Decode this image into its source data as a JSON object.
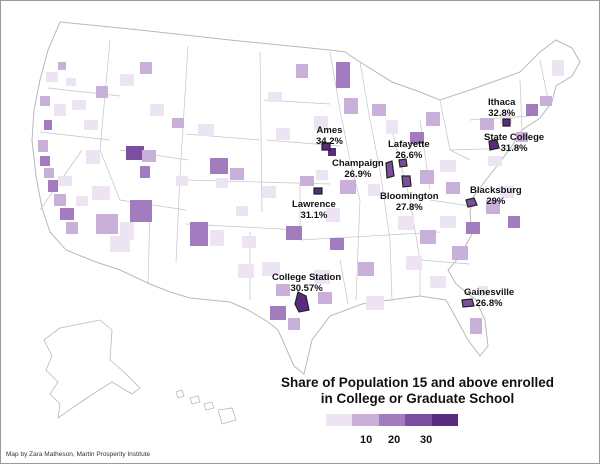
{
  "cities": [
    {
      "id": "ithaca",
      "name": "Ithaca",
      "value": "32.8%"
    },
    {
      "id": "ames",
      "name": "Ames",
      "value": "34.2%"
    },
    {
      "id": "lafayette",
      "name": "Lafayette",
      "value": "26.6%"
    },
    {
      "id": "state-college",
      "name": "State College",
      "value": "31.8%"
    },
    {
      "id": "champaign",
      "name": "Champaign",
      "value": "26.9%"
    },
    {
      "id": "bloomington",
      "name": "Bloomington",
      "value": "27.8%"
    },
    {
      "id": "lawrence",
      "name": "Lawrence",
      "value": "31.1%"
    },
    {
      "id": "blacksburg",
      "name": "Blacksburg",
      "value": "29%"
    },
    {
      "id": "college-station",
      "name": "College Station",
      "value": "30.57%"
    },
    {
      "id": "gainesville",
      "name": "Gainesville",
      "value": "26.8%"
    }
  ],
  "legend": {
    "title_line1": "Share of Population 15 and above enrolled",
    "title_line2": "in College or Graduate School",
    "ticks": [
      "10",
      "20",
      "30"
    ],
    "colors": [
      "#ece4f3",
      "#c9b0d9",
      "#a37cbf",
      "#7c4ea0",
      "#5a2a80"
    ]
  },
  "credit": "Map by Zara Matheson, Martin Prosperity Institute",
  "colors": {
    "land": "#ffffff",
    "border": "#b9b9b9",
    "level1": "#ece4f3",
    "level2": "#c9b0d9",
    "level3": "#a37cbf",
    "level4": "#7c4ea0",
    "level5": "#5a2a80"
  }
}
